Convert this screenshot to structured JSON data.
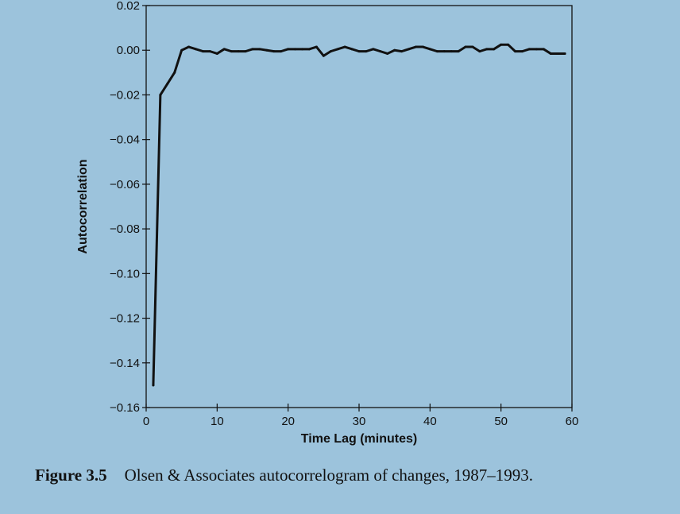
{
  "caption": {
    "label": "Figure 3.5",
    "text": "Olsen & Associates autocorrelogram of changes, 1987–1993."
  },
  "colors": {
    "background": "#9cc3dc",
    "line": "#111111"
  },
  "chart_data": {
    "type": "line",
    "title": "",
    "xlabel": "Time Lag (minutes)",
    "ylabel": "Autocorrelation",
    "xlim": [
      0,
      60
    ],
    "ylim": [
      -0.16,
      0.02
    ],
    "xticks": [
      0,
      10,
      20,
      30,
      40,
      50,
      60
    ],
    "xtick_labels": [
      "0",
      "10",
      "20",
      "30",
      "40",
      "50",
      "60"
    ],
    "yticks": [
      0.02,
      0.0,
      -0.02,
      -0.04,
      -0.06,
      -0.08,
      -0.1,
      -0.12,
      -0.14,
      -0.16
    ],
    "ytick_labels": [
      "0.02",
      "0.00",
      "−0.02",
      "−0.04",
      "−0.06",
      "−0.08",
      "−0.10",
      "−0.12",
      "−0.14",
      "−0.16"
    ],
    "grid": false,
    "series": [
      {
        "x": [
          1,
          2,
          3,
          4,
          5,
          6,
          7,
          8,
          9,
          10,
          11,
          12,
          13,
          14,
          15,
          16,
          17,
          18,
          19,
          20,
          21,
          22,
          23,
          24,
          25,
          26,
          27,
          28,
          29,
          30,
          31,
          32,
          33,
          34,
          35,
          36,
          37,
          38,
          39,
          40,
          41,
          42,
          43,
          44,
          45,
          46,
          47,
          48,
          49,
          50,
          51,
          52,
          53,
          54,
          55,
          56,
          57,
          58,
          59
        ],
        "y": [
          -0.15,
          -0.02,
          -0.015,
          -0.01,
          0.0,
          0.0015,
          0.0005,
          -0.0005,
          -0.0005,
          -0.0015,
          0.0005,
          -0.0005,
          -0.0005,
          -0.0005,
          0.0005,
          0.0005,
          0.0,
          -0.0005,
          -0.0005,
          0.0005,
          0.0005,
          0.0005,
          0.0005,
          0.0015,
          -0.0025,
          -0.0005,
          0.0005,
          0.0015,
          0.0005,
          -0.0005,
          -0.0005,
          0.0005,
          -0.0005,
          -0.0015,
          0.0,
          -0.0005,
          0.0005,
          0.0015,
          0.0015,
          0.0005,
          -0.0005,
          -0.0005,
          -0.0005,
          -0.0005,
          0.0015,
          0.0015,
          -0.0005,
          0.0005,
          0.0005,
          0.0025,
          0.0025,
          -0.0005,
          -0.0005,
          0.0005,
          0.0005,
          0.0005,
          -0.0015,
          -0.0015,
          -0.0015
        ]
      }
    ]
  }
}
